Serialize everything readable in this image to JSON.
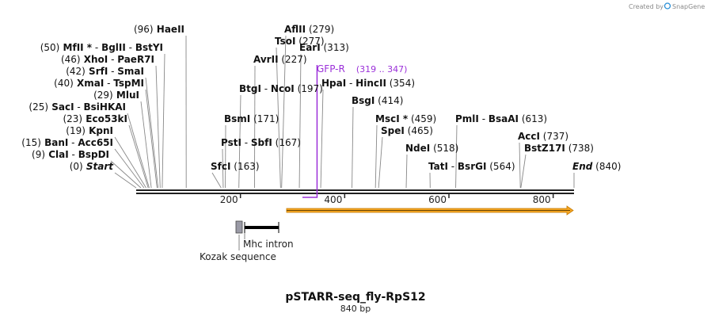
{
  "header": {
    "created_by": "Created by",
    "brand": "SnapGene"
  },
  "construct": {
    "name": "pSTARR-seq_fly-RpS12",
    "length_label": "840 bp",
    "length": 840
  },
  "axis_ticks": [
    {
      "value": 200,
      "label": "200"
    },
    {
      "value": 400,
      "label": "400"
    },
    {
      "value": 600,
      "label": "600"
    },
    {
      "value": 800,
      "label": "800"
    }
  ],
  "sites": [
    {
      "pos": 0,
      "pos_label": "(0)",
      "names": [
        "Start"
      ],
      "italic": true
    },
    {
      "pos": 9,
      "pos_label": "(9)",
      "names": [
        "ClaI",
        "BspDI"
      ]
    },
    {
      "pos": 15,
      "pos_label": "(15)",
      "names": [
        "BanI",
        "Acc65I"
      ]
    },
    {
      "pos": 19,
      "pos_label": "(19)",
      "names": [
        "KpnI"
      ]
    },
    {
      "pos": 23,
      "pos_label": "(23)",
      "names": [
        "Eco53kI"
      ]
    },
    {
      "pos": 25,
      "pos_label": "(25)",
      "names": [
        "SacI",
        "BsiHKAI"
      ]
    },
    {
      "pos": 29,
      "pos_label": "(29)",
      "names": [
        "MluI"
      ]
    },
    {
      "pos": 40,
      "pos_label": "(40)",
      "names": [
        "XmaI",
        "TspMI"
      ]
    },
    {
      "pos": 42,
      "pos_label": "(42)",
      "names": [
        "SrfI",
        "SmaI"
      ]
    },
    {
      "pos": 46,
      "pos_label": "(46)",
      "names": [
        "XhoI",
        "PaeR7I"
      ]
    },
    {
      "pos": 50,
      "pos_label": "(50)",
      "names": [
        "MfII *",
        "BglII",
        "BstYI"
      ]
    },
    {
      "pos": 96,
      "pos_label": "(96)",
      "names": [
        "HaeII"
      ]
    },
    {
      "pos": 163,
      "pos_label": "(163)",
      "names": [
        "SfcI"
      ]
    },
    {
      "pos": 167,
      "pos_label": "(167)",
      "names": [
        "PstI",
        "SbfI"
      ]
    },
    {
      "pos": 171,
      "pos_label": "(171)",
      "names": [
        "BsmI"
      ]
    },
    {
      "pos": 197,
      "pos_label": "(197)",
      "names": [
        "BtgI",
        "NcoI"
      ]
    },
    {
      "pos": 227,
      "pos_label": "(227)",
      "names": [
        "AvrII"
      ]
    },
    {
      "pos": 277,
      "pos_label": "(277)",
      "names": [
        "TsoI"
      ]
    },
    {
      "pos": 279,
      "pos_label": "(279)",
      "names": [
        "AflII"
      ]
    },
    {
      "pos": 313,
      "pos_label": "(313)",
      "names": [
        "EarI"
      ]
    },
    {
      "pos": 354,
      "pos_label": "(354)",
      "names": [
        "HpaI",
        "HincII"
      ]
    },
    {
      "pos": 414,
      "pos_label": "(414)",
      "names": [
        "BsgI"
      ]
    },
    {
      "pos": 459,
      "pos_label": "(459)",
      "names": [
        "MscI *"
      ]
    },
    {
      "pos": 465,
      "pos_label": "(465)",
      "names": [
        "SpeI"
      ]
    },
    {
      "pos": 518,
      "pos_label": "(518)",
      "names": [
        "NdeI"
      ]
    },
    {
      "pos": 564,
      "pos_label": "(564)",
      "names": [
        "TatI",
        "BsrGI"
      ]
    },
    {
      "pos": 613,
      "pos_label": "(613)",
      "names": [
        "PmlI",
        "BsaAI"
      ]
    },
    {
      "pos": 737,
      "pos_label": "(737)",
      "names": [
        "AccI"
      ]
    },
    {
      "pos": 738,
      "pos_label": "(738)",
      "names": [
        "BstZ17I"
      ]
    },
    {
      "pos": 840,
      "pos_label": "(840)",
      "names": [
        "End"
      ],
      "italic": true
    }
  ],
  "primer": {
    "name": "GFP-R",
    "range_label": "(319 .. 347)",
    "start": 319,
    "end": 347,
    "color": "#9b30d9"
  },
  "features": [
    {
      "name": "Kozak sequence",
      "start": 188,
      "end": 200,
      "color": "#9a9aa6"
    },
    {
      "name": "Mhc intron",
      "start": 204,
      "end": 270,
      "color": "#000000"
    }
  ],
  "orf": {
    "start": 284,
    "end": 840,
    "color": "#f5a623",
    "stroke": "#c47a00"
  },
  "colors": {
    "backbone": "#222222",
    "brand_accent": "#2a8fd6"
  }
}
